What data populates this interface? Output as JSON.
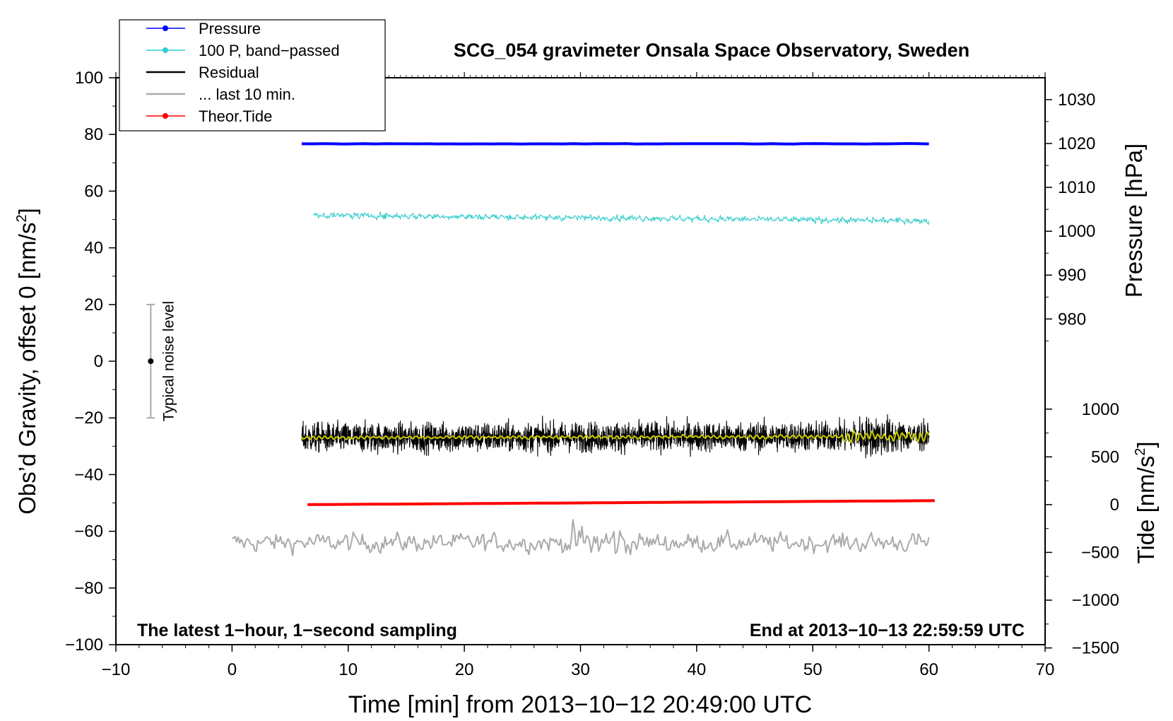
{
  "chart_data": {
    "type": "line",
    "title": "SCG_054 gravimeter Onsala Space Observatory, Sweden",
    "xlabel": "Time [min] from 2013−10−12 20:49:00 UTC",
    "ylabel": "Obs’d Gravity, offset 0 [nm/s",
    "ylabel_sup": "2",
    "ylabel_tail": "]",
    "y2label": "Pressure [hPa]",
    "y3label": "Tide [nm/s",
    "y3label_sup": "2",
    "y3label_tail": "]",
    "xlim": [
      -10,
      70
    ],
    "ylim": [
      -100,
      100
    ],
    "x_ticks": [
      -10,
      0,
      10,
      20,
      30,
      40,
      50,
      60,
      70
    ],
    "x_tick_labels": [
      "−10",
      "0",
      "10",
      "20",
      "30",
      "40",
      "50",
      "60",
      "70"
    ],
    "y_ticks": [
      -100,
      -80,
      -60,
      -40,
      -20,
      0,
      20,
      40,
      60,
      80,
      100
    ],
    "y_tick_labels": [
      "−100",
      "−80",
      "−60",
      "−40",
      "−20",
      "0",
      "20",
      "40",
      "60",
      "80",
      "100"
    ],
    "pressure_axis": {
      "ticks": [
        980,
        990,
        1000,
        1010,
        1020,
        1030
      ],
      "tick_labels": [
        "980",
        "990",
        "1000",
        "1010",
        "1020",
        "1030"
      ],
      "map": {
        "value_a": 1020,
        "gravity_a": 76.8,
        "value_b": 980,
        "gravity_b": 14.9
      }
    },
    "tide_axis": {
      "ticks": [
        -1500,
        -1000,
        -500,
        0,
        500,
        1000
      ],
      "tick_labels": [
        "−1500",
        "−1000",
        "−500",
        "0",
        "500",
        "1000"
      ],
      "map": {
        "value_a": 0,
        "gravity_a": -50.6,
        "value_b": 1000,
        "gravity_b": -16.9
      }
    },
    "legend": {
      "placement": "top-left",
      "entries": [
        {
          "label": "Pressure",
          "color": "#0000ff",
          "marker": true
        },
        {
          "label": "100 P, band−passed",
          "color": "#33cccc",
          "marker": true
        },
        {
          "label": "Residual",
          "color": "#000000",
          "marker": false
        },
        {
          "label": "... last 10 min.",
          "color": "#aaaaaa",
          "marker": false
        },
        {
          "label": "Theor.Tide",
          "color": "#ff0000",
          "marker": true
        }
      ]
    },
    "annotations": {
      "left": "The latest 1−hour, 1−second sampling",
      "right": "End at 2013−10−13 22:59:59 UTC",
      "noise": "Typical noise level"
    },
    "noise_bar": {
      "x": -7,
      "center": 0,
      "low": -20,
      "high": 20
    },
    "series": [
      {
        "name": "Pressure",
        "color": "#0000ff",
        "x_start": 6,
        "x_end": 60,
        "y_start": 76.7,
        "y_end": 76.7,
        "noise_amp": 0.15,
        "style": "flat"
      },
      {
        "name": "100 P, band−passed",
        "color": "#33cccc",
        "x_start": 7,
        "x_end": 60,
        "y_start": 51.5,
        "y_end": 49.5,
        "noise_amp": 1.2,
        "style": "noisy"
      },
      {
        "name": "Residual",
        "color": "#000000",
        "x_start": 6,
        "x_end": 60,
        "y_start": -27,
        "y_end": -26.5,
        "noise_amp": 5.5,
        "style": "dense"
      },
      {
        "name": "Residual smoothed",
        "color": "#cccc00",
        "x_start": 6,
        "x_end": 60,
        "y_start": -27,
        "y_end": -26.5,
        "noise_amp": 1.2,
        "style": "smooth"
      },
      {
        "name": "... last 10 min.",
        "color": "#aaaaaa",
        "x_start": 0,
        "x_end": 60,
        "y_start": -64,
        "y_end": -64,
        "noise_amp": 4.5,
        "style": "wavy"
      },
      {
        "name": "Theor.Tide",
        "color": "#ff0000",
        "x_start": 6.5,
        "x_end": 60.5,
        "y_start": -50.6,
        "y_end": -49.2,
        "noise_amp": 0,
        "style": "flat"
      }
    ]
  }
}
